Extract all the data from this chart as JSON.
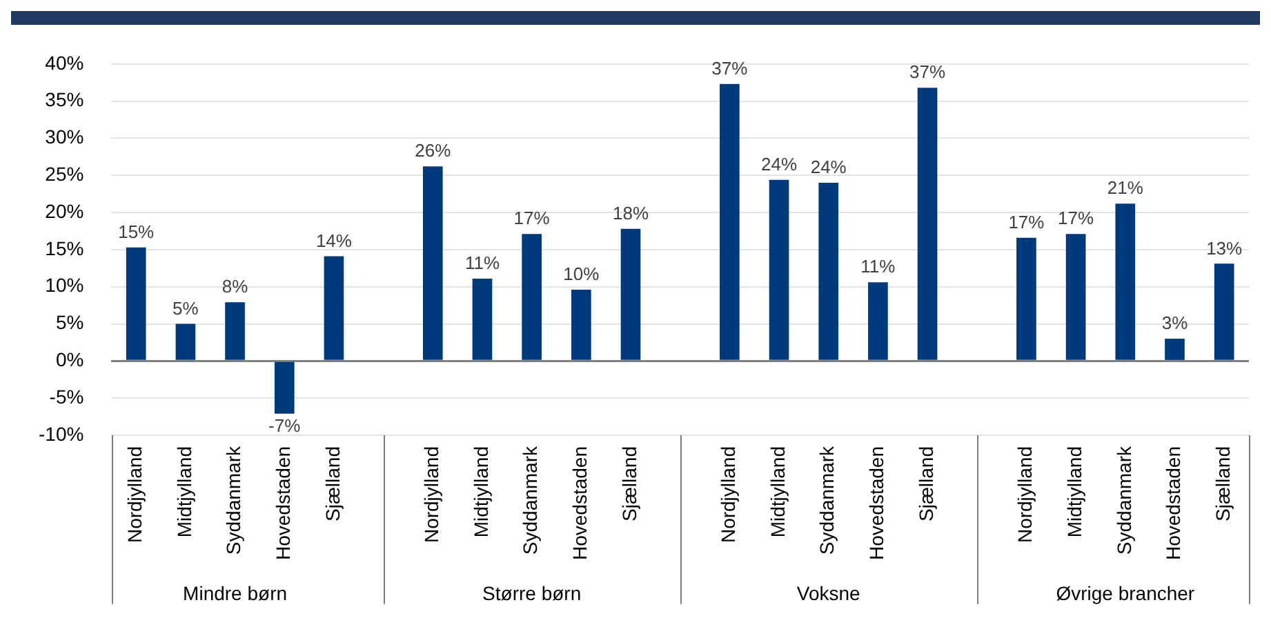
{
  "chart_data": {
    "type": "bar",
    "categories": [
      "Nordjylland",
      "Midtjylland",
      "Syddanmark",
      "Hovedstaden",
      "Sjælland",
      null,
      "Nordjylland",
      "Midtjylland",
      "Syddanmark",
      "Hovedstaden",
      "Sjælland",
      null,
      "Nordjylland",
      "Midtjylland",
      "Syddanmark",
      "Hovedstaden",
      "Sjælland",
      null,
      "Nordjylland",
      "Midtjylland",
      "Syddanmark",
      "Hovedstaden",
      "Sjælland"
    ],
    "values": [
      15.3,
      5.0,
      7.9,
      -7.1,
      14.1,
      null,
      26.2,
      11.1,
      17.1,
      9.6,
      17.8,
      null,
      37.3,
      24.4,
      24.0,
      10.6,
      36.8,
      null,
      16.6,
      17.1,
      21.2,
      3.0,
      13.1
    ],
    "value_labels": [
      "15%",
      "5%",
      "8%",
      "-7%",
      "14%",
      null,
      "26%",
      "11%",
      "17%",
      "10%",
      "18%",
      null,
      "37%",
      "24%",
      "24%",
      "11%",
      "37%",
      null,
      "17%",
      "17%",
      "21%",
      "3%",
      "13%"
    ],
    "color": "#003a7a",
    "ylim": [
      -10,
      40
    ],
    "yticks": [
      {
        "value": -10,
        "label": "-10%"
      },
      {
        "value": -5,
        "label": "-5%"
      },
      {
        "value": 0,
        "label": "0%"
      },
      {
        "value": 5,
        "label": "5%"
      },
      {
        "value": 10,
        "label": "10%"
      },
      {
        "value": 15,
        "label": "15%"
      },
      {
        "value": 20,
        "label": "20%"
      },
      {
        "value": 25,
        "label": "25%"
      },
      {
        "value": 30,
        "label": "30%"
      },
      {
        "value": 35,
        "label": "35%"
      },
      {
        "value": 40,
        "label": "40%"
      }
    ],
    "grid": "y",
    "legend": false,
    "annotations": [
      "Mindre børn",
      "Større børn",
      "Voksne",
      "Øvrige brancher"
    ]
  }
}
